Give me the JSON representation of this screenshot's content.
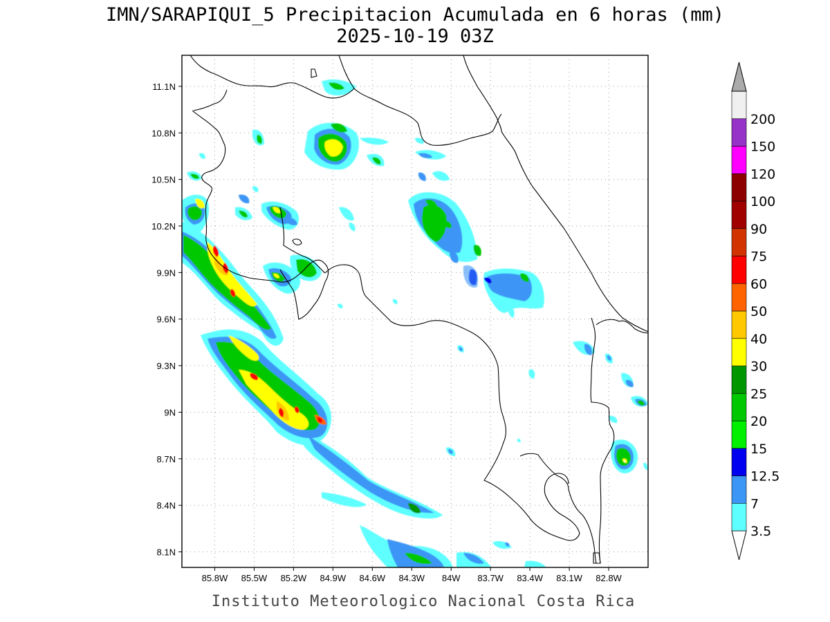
{
  "title": "IMN/SARAPIQUI_5 Precipitacion Acumulada en 6 horas (mm)",
  "subtitle": "2025-10-19 03Z",
  "footer": "Instituto Meteorologico Nacional Costa Rica",
  "map": {
    "lon_range": [
      -86.05,
      -82.5
    ],
    "lat_range": [
      8.0,
      11.3
    ],
    "lon_ticks": [
      {
        "value": -85.8,
        "label": "85.8W"
      },
      {
        "value": -85.5,
        "label": "85.5W"
      },
      {
        "value": -85.2,
        "label": "85.2W"
      },
      {
        "value": -84.9,
        "label": "84.9W"
      },
      {
        "value": -84.6,
        "label": "84.6W"
      },
      {
        "value": -84.3,
        "label": "84.3W"
      },
      {
        "value": -84.0,
        "label": "84W"
      },
      {
        "value": -83.7,
        "label": "83.7W"
      },
      {
        "value": -83.4,
        "label": "83.4W"
      },
      {
        "value": -83.1,
        "label": "83.1W"
      },
      {
        "value": -82.8,
        "label": "82.8W"
      }
    ],
    "lat_ticks": [
      {
        "value": 11.1,
        "label": "11.1N"
      },
      {
        "value": 10.8,
        "label": "10.8N"
      },
      {
        "value": 10.5,
        "label": "10.5N"
      },
      {
        "value": 10.2,
        "label": "10.2N"
      },
      {
        "value": 9.9,
        "label": "9.9N"
      },
      {
        "value": 9.6,
        "label": "9.6N"
      },
      {
        "value": 9.3,
        "label": "9.3N"
      },
      {
        "value": 9.0,
        "label": "9N"
      },
      {
        "value": 8.7,
        "label": "8.7N"
      },
      {
        "value": 8.4,
        "label": "8.4N"
      },
      {
        "value": 8.1,
        "label": "8.1N"
      }
    ],
    "grid": true,
    "coastlines": true
  },
  "colorbar": {
    "levels": [
      {
        "label": "3.5",
        "color": "#5effff"
      },
      {
        "label": "7",
        "color": "#3c96f5"
      },
      {
        "label": "12.5",
        "color": "#0000f0"
      },
      {
        "label": "15",
        "color": "#00f000"
      },
      {
        "label": "20",
        "color": "#00c800"
      },
      {
        "label": "25",
        "color": "#009600"
      },
      {
        "label": "30",
        "color": "#ffff00"
      },
      {
        "label": "40",
        "color": "#ffc800"
      },
      {
        "label": "50",
        "color": "#ff6400"
      },
      {
        "label": "60",
        "color": "#ff0000"
      },
      {
        "label": "75",
        "color": "#d23200"
      },
      {
        "label": "90",
        "color": "#a00000"
      },
      {
        "label": "100",
        "color": "#8c0000"
      },
      {
        "label": "120",
        "color": "#ff00ff"
      },
      {
        "label": "150",
        "color": "#9632c8"
      },
      {
        "label": "200",
        "color": "#f0f0f0"
      }
    ],
    "over_color": "#aaaaaa"
  }
}
